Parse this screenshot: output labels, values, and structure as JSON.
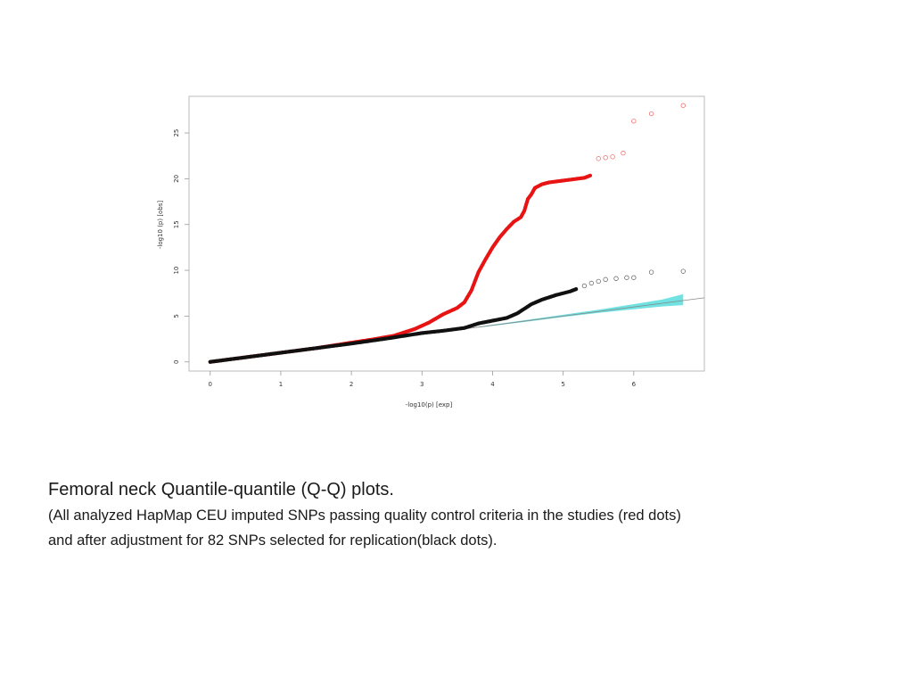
{
  "caption": {
    "title": "Femoral neck Quantile-quantile (Q-Q) plots.",
    "line1": "(All analyzed HapMap CEU imputed SNPs passing quality control criteria in the studies (red dots)",
    "line2": "and after adjustment for 82 SNPs selected for replication(black dots)."
  },
  "chart_data": {
    "type": "scatter",
    "title": "",
    "xlabel": "-log10(p) [exp]",
    "ylabel": "-log10 (p) [obs]",
    "xlim": [
      -0.3,
      7.0
    ],
    "ylim": [
      -1,
      29
    ],
    "xticks": [
      0,
      1,
      2,
      3,
      4,
      5,
      6
    ],
    "yticks": [
      0,
      5,
      10,
      15,
      20,
      25
    ],
    "grid": false,
    "legend": "none",
    "reference_line": {
      "x": [
        0,
        7.0
      ],
      "y": [
        0,
        7.0
      ],
      "color": "#888888"
    },
    "confidence_band": {
      "color": "#40d8d8",
      "x": [
        3.8,
        4.5,
        5.0,
        5.5,
        6.0,
        6.4,
        6.7
      ],
      "lower": [
        3.75,
        4.4,
        4.9,
        5.35,
        5.75,
        6.05,
        6.2
      ],
      "upper": [
        3.85,
        4.6,
        5.15,
        5.7,
        6.3,
        6.8,
        7.4
      ]
    },
    "series": [
      {
        "color": "#e81414",
        "marker": "dot",
        "points": [
          [
            0,
            0
          ],
          [
            0.5,
            0.5
          ],
          [
            1,
            1
          ],
          [
            1.5,
            1.5
          ],
          [
            2,
            2.1
          ],
          [
            2.3,
            2.45
          ],
          [
            2.6,
            2.85
          ],
          [
            2.9,
            3.6
          ],
          [
            3.1,
            4.3
          ],
          [
            3.3,
            5.2
          ],
          [
            3.5,
            5.9
          ],
          [
            3.6,
            6.5
          ],
          [
            3.7,
            7.8
          ],
          [
            3.8,
            9.8
          ],
          [
            3.9,
            11.2
          ],
          [
            4.0,
            12.5
          ],
          [
            4.1,
            13.6
          ],
          [
            4.2,
            14.5
          ],
          [
            4.3,
            15.3
          ],
          [
            4.4,
            15.8
          ],
          [
            4.45,
            16.5
          ],
          [
            4.5,
            17.8
          ],
          [
            4.55,
            18.3
          ],
          [
            4.6,
            19.0
          ],
          [
            4.7,
            19.4
          ],
          [
            4.8,
            19.6
          ],
          [
            4.9,
            19.7
          ],
          [
            5.0,
            19.8
          ],
          [
            5.1,
            19.9
          ],
          [
            5.2,
            20.0
          ],
          [
            5.3,
            20.1
          ],
          [
            5.4,
            20.4
          ]
        ],
        "outliers": [
          [
            5.5,
            22.2
          ],
          [
            5.6,
            22.3
          ],
          [
            5.7,
            22.4
          ],
          [
            5.85,
            22.8
          ],
          [
            6.0,
            26.3
          ],
          [
            6.25,
            27.1
          ],
          [
            6.7,
            28.0
          ]
        ]
      },
      {
        "color": "#111111",
        "marker": "dot",
        "points": [
          [
            0,
            0
          ],
          [
            0.5,
            0.5
          ],
          [
            1,
            1
          ],
          [
            1.5,
            1.5
          ],
          [
            2,
            2.0
          ],
          [
            2.5,
            2.55
          ],
          [
            3,
            3.15
          ],
          [
            3.3,
            3.4
          ],
          [
            3.6,
            3.7
          ],
          [
            3.8,
            4.2
          ],
          [
            4.0,
            4.5
          ],
          [
            4.2,
            4.8
          ],
          [
            4.35,
            5.3
          ],
          [
            4.45,
            5.8
          ],
          [
            4.55,
            6.3
          ],
          [
            4.7,
            6.8
          ],
          [
            4.9,
            7.3
          ],
          [
            5.1,
            7.7
          ],
          [
            5.2,
            8.0
          ]
        ],
        "outliers": [
          [
            5.3,
            8.3
          ],
          [
            5.4,
            8.6
          ],
          [
            5.5,
            8.8
          ],
          [
            5.6,
            9.0
          ],
          [
            5.75,
            9.1
          ],
          [
            5.9,
            9.2
          ],
          [
            6.0,
            9.2
          ],
          [
            6.25,
            9.8
          ],
          [
            6.7,
            9.9
          ]
        ]
      }
    ]
  }
}
